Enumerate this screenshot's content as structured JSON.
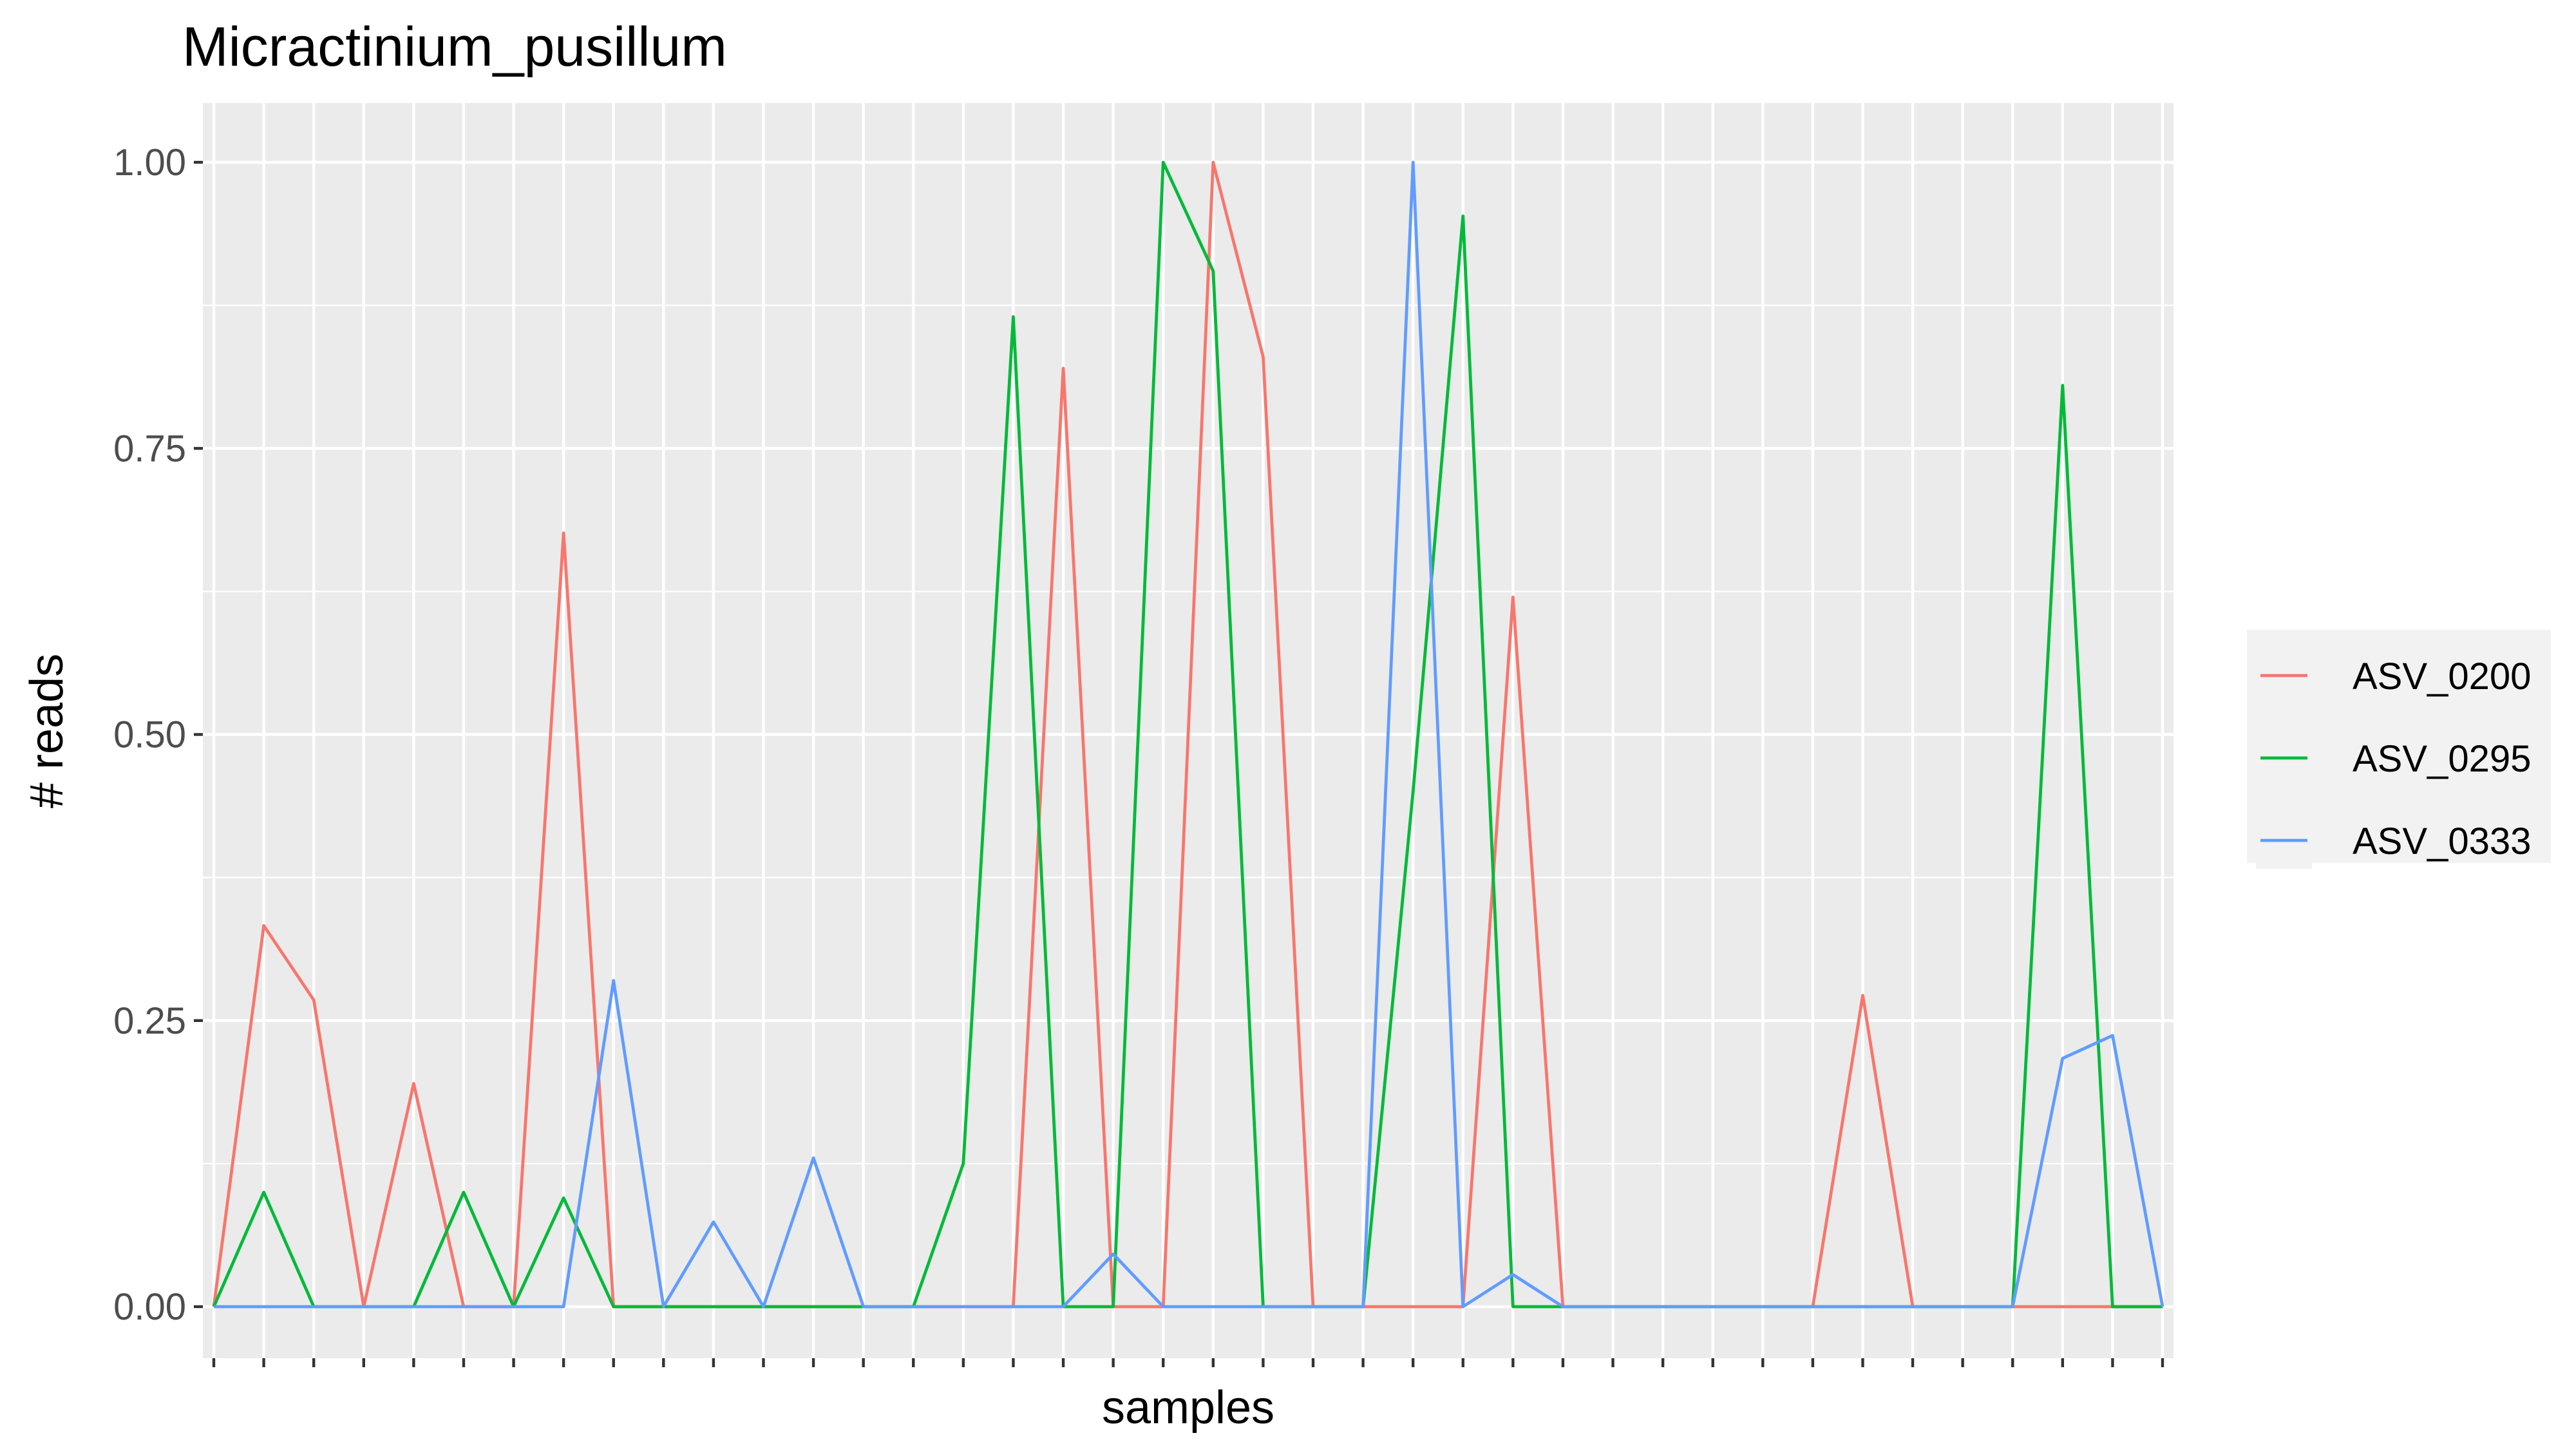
{
  "chart_data": {
    "type": "line",
    "title": "Micractinium_pusillum",
    "xlabel": "samples",
    "ylabel": "# reads",
    "ylim": [
      0,
      1.0
    ],
    "yticks": [
      0,
      0.25,
      0.5,
      0.75,
      1.0
    ],
    "ytick_labels": [
      "0.00",
      "0.25",
      "0.50",
      "0.75",
      "1.00"
    ],
    "x_tick_count": 40,
    "x_tick_labels_shown": false,
    "grid": true,
    "legend_position": "right",
    "x": [
      1,
      2,
      3,
      4,
      5,
      6,
      7,
      8,
      9,
      10,
      11,
      12,
      13,
      14,
      15,
      16,
      17,
      18,
      19,
      20,
      21,
      22,
      23,
      24,
      25,
      26,
      27,
      28,
      29,
      30,
      31,
      32,
      33,
      34,
      35,
      36,
      37,
      38,
      39,
      40
    ],
    "series": [
      {
        "name": "ASV_0200",
        "color": "#F8766D",
        "values": [
          0,
          0.333,
          0.268,
          0,
          0.195,
          0,
          0,
          0.676,
          0,
          0,
          0,
          0,
          0,
          0,
          0,
          0,
          0,
          0.82,
          0,
          0,
          1.0,
          0.83,
          0,
          0,
          0,
          0,
          0.62,
          0,
          0,
          0,
          0,
          0,
          0,
          0.272,
          0,
          0,
          0,
          0,
          0,
          0
        ]
      },
      {
        "name": "ASV_0295",
        "color": "#00BA38",
        "values": [
          0,
          0.1,
          0,
          0,
          0,
          0.1,
          0,
          0.095,
          0,
          0,
          0,
          0,
          0,
          0,
          0,
          0.125,
          0.865,
          0,
          0,
          1.0,
          0.905,
          0,
          0,
          0,
          0.45,
          0.953,
          0,
          0,
          0,
          0,
          0,
          0,
          0,
          0,
          0,
          0,
          0,
          0.805,
          0,
          0
        ]
      },
      {
        "name": "ASV_0333",
        "color": "#619CFF",
        "values": [
          0,
          0,
          0,
          0,
          0,
          0,
          0,
          0,
          0.285,
          0,
          0.074,
          0,
          0.13,
          0,
          0,
          0,
          0,
          0,
          0.046,
          0,
          0,
          0,
          0,
          0,
          1.0,
          0,
          0.028,
          0,
          0,
          0,
          0,
          0,
          0,
          0,
          0,
          0,
          0,
          0.217,
          0.237,
          0
        ]
      }
    ]
  }
}
